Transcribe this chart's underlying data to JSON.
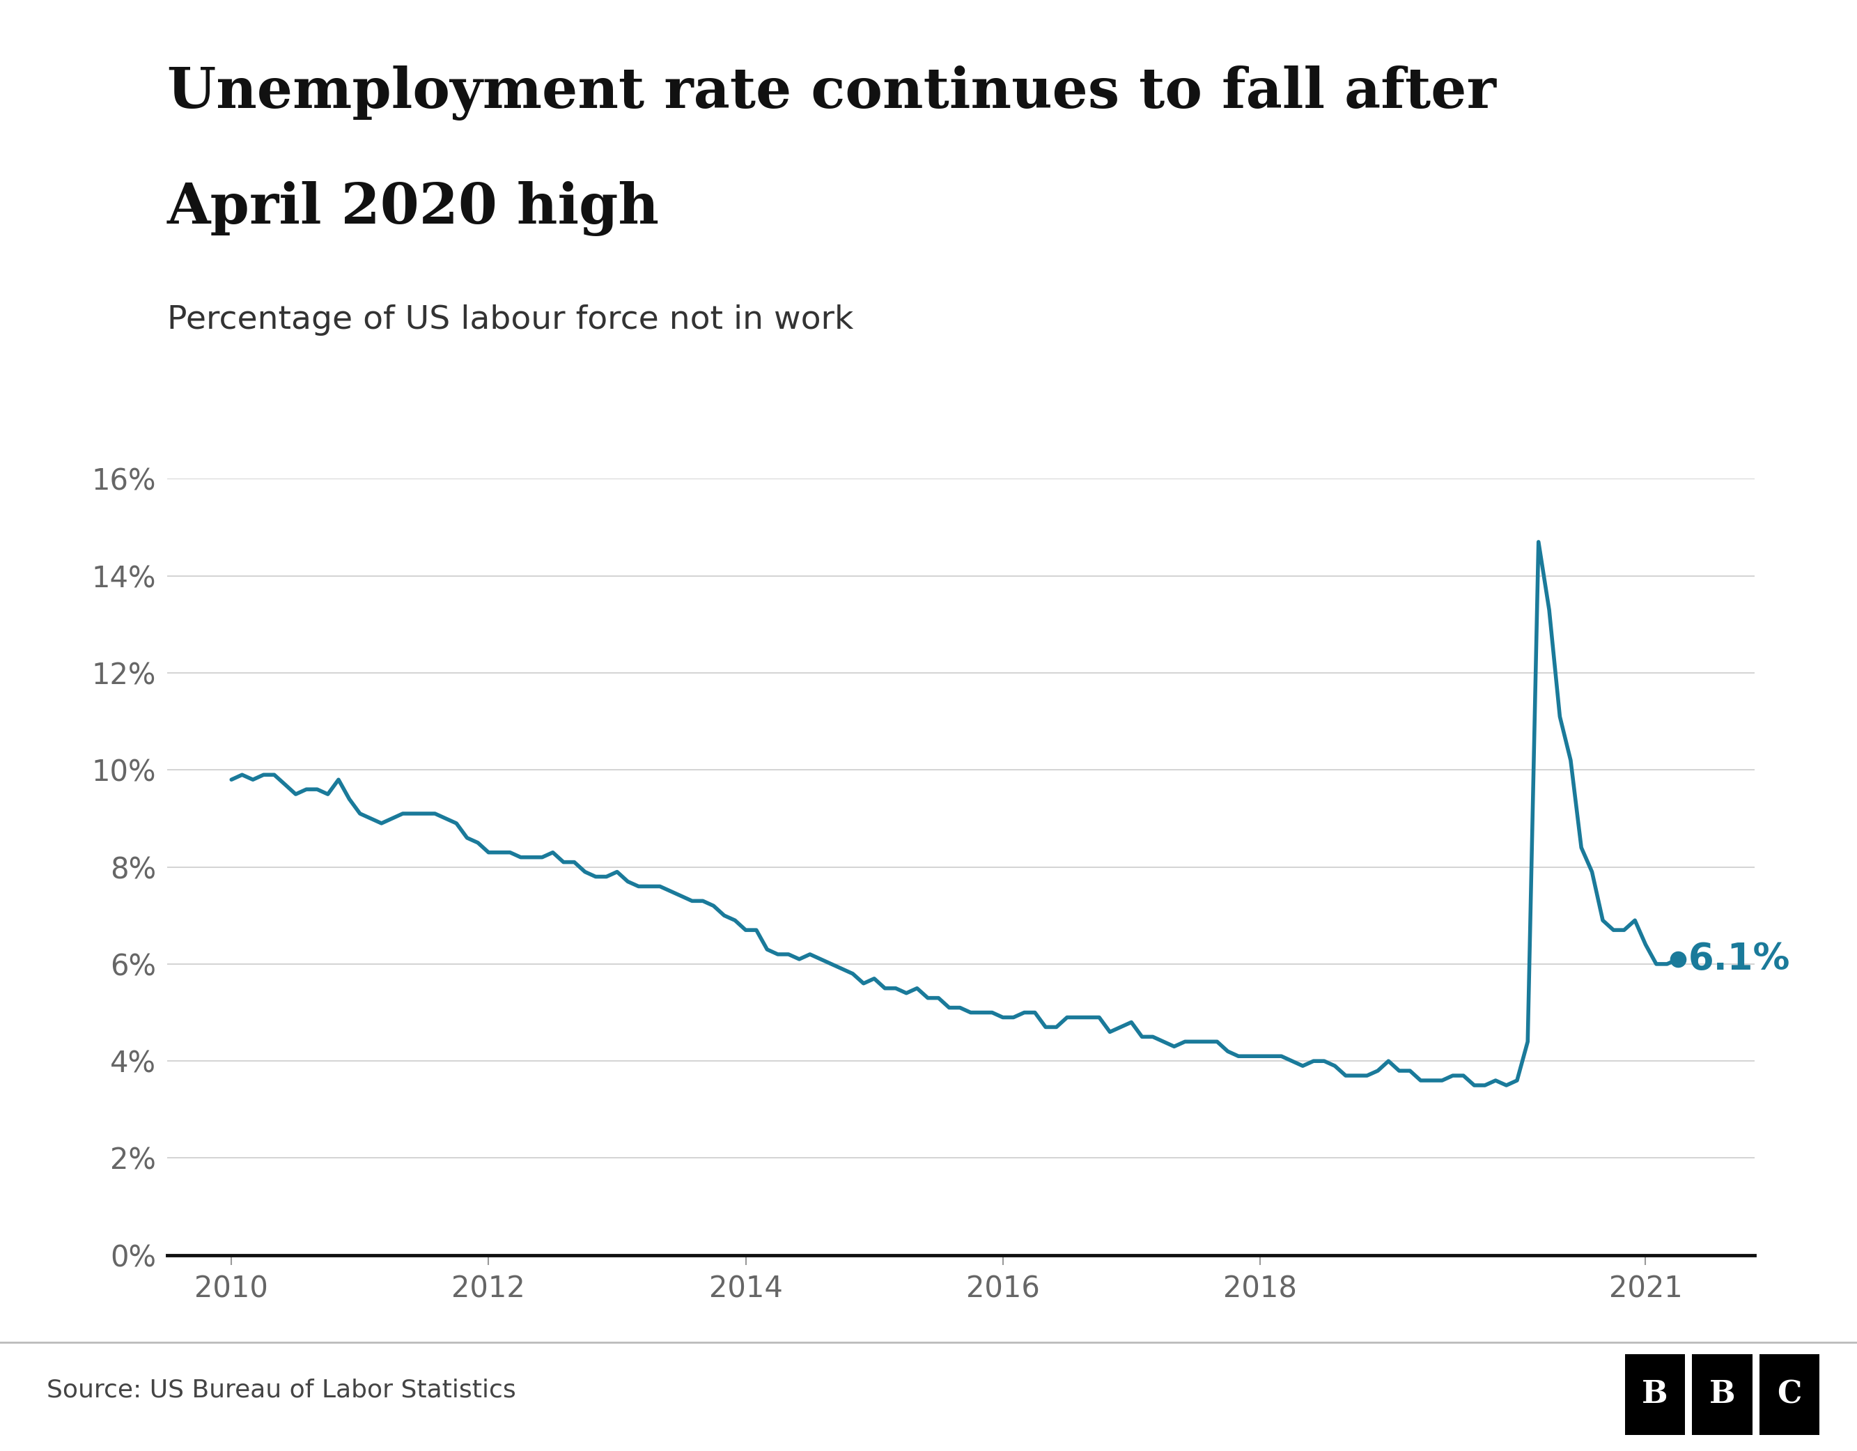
{
  "title_line1": "Unemployment rate continues to fall after",
  "title_line2": "April 2020 high",
  "subtitle": "Percentage of US labour force not in work",
  "source": "Source: US Bureau of Labor Statistics",
  "line_color": "#1a7a9a",
  "background_color": "#ffffff",
  "annotation_value": "6.1%",
  "annotation_color": "#1a7a9a",
  "ylim": [
    0,
    16
  ],
  "yticks": [
    0,
    2,
    4,
    6,
    8,
    10,
    12,
    14,
    16
  ],
  "xticks": [
    2010,
    2012,
    2014,
    2016,
    2018,
    2021
  ],
  "data": {
    "dates": [
      2010.0,
      2010.083,
      2010.167,
      2010.25,
      2010.333,
      2010.417,
      2010.5,
      2010.583,
      2010.667,
      2010.75,
      2010.833,
      2010.917,
      2011.0,
      2011.083,
      2011.167,
      2011.25,
      2011.333,
      2011.417,
      2011.5,
      2011.583,
      2011.667,
      2011.75,
      2011.833,
      2011.917,
      2012.0,
      2012.083,
      2012.167,
      2012.25,
      2012.333,
      2012.417,
      2012.5,
      2012.583,
      2012.667,
      2012.75,
      2012.833,
      2012.917,
      2013.0,
      2013.083,
      2013.167,
      2013.25,
      2013.333,
      2013.417,
      2013.5,
      2013.583,
      2013.667,
      2013.75,
      2013.833,
      2013.917,
      2014.0,
      2014.083,
      2014.167,
      2014.25,
      2014.333,
      2014.417,
      2014.5,
      2014.583,
      2014.667,
      2014.75,
      2014.833,
      2014.917,
      2015.0,
      2015.083,
      2015.167,
      2015.25,
      2015.333,
      2015.417,
      2015.5,
      2015.583,
      2015.667,
      2015.75,
      2015.833,
      2015.917,
      2016.0,
      2016.083,
      2016.167,
      2016.25,
      2016.333,
      2016.417,
      2016.5,
      2016.583,
      2016.667,
      2016.75,
      2016.833,
      2016.917,
      2017.0,
      2017.083,
      2017.167,
      2017.25,
      2017.333,
      2017.417,
      2017.5,
      2017.583,
      2017.667,
      2017.75,
      2017.833,
      2017.917,
      2018.0,
      2018.083,
      2018.167,
      2018.25,
      2018.333,
      2018.417,
      2018.5,
      2018.583,
      2018.667,
      2018.75,
      2018.833,
      2018.917,
      2019.0,
      2019.083,
      2019.167,
      2019.25,
      2019.333,
      2019.417,
      2019.5,
      2019.583,
      2019.667,
      2019.75,
      2019.833,
      2019.917,
      2020.0,
      2020.083,
      2020.167,
      2020.25,
      2020.333,
      2020.417,
      2020.5,
      2020.583,
      2020.667,
      2020.75,
      2020.833,
      2020.917,
      2021.0,
      2021.083,
      2021.167,
      2021.25
    ],
    "values": [
      9.8,
      9.9,
      9.8,
      9.9,
      9.9,
      9.7,
      9.5,
      9.6,
      9.6,
      9.5,
      9.8,
      9.4,
      9.1,
      9.0,
      8.9,
      9.0,
      9.1,
      9.1,
      9.1,
      9.1,
      9.0,
      8.9,
      8.6,
      8.5,
      8.3,
      8.3,
      8.3,
      8.2,
      8.2,
      8.2,
      8.3,
      8.1,
      8.1,
      7.9,
      7.8,
      7.8,
      7.9,
      7.7,
      7.6,
      7.6,
      7.6,
      7.5,
      7.4,
      7.3,
      7.3,
      7.2,
      7.0,
      6.9,
      6.7,
      6.7,
      6.3,
      6.2,
      6.2,
      6.1,
      6.2,
      6.1,
      6.0,
      5.9,
      5.8,
      5.6,
      5.7,
      5.5,
      5.5,
      5.4,
      5.5,
      5.3,
      5.3,
      5.1,
      5.1,
      5.0,
      5.0,
      5.0,
      4.9,
      4.9,
      5.0,
      5.0,
      4.7,
      4.7,
      4.9,
      4.9,
      4.9,
      4.9,
      4.6,
      4.7,
      4.8,
      4.5,
      4.5,
      4.4,
      4.3,
      4.4,
      4.4,
      4.4,
      4.4,
      4.2,
      4.1,
      4.1,
      4.1,
      4.1,
      4.1,
      4.0,
      3.9,
      4.0,
      4.0,
      3.9,
      3.7,
      3.7,
      3.7,
      3.8,
      4.0,
      3.8,
      3.8,
      3.6,
      3.6,
      3.6,
      3.7,
      3.7,
      3.5,
      3.5,
      3.6,
      3.5,
      3.6,
      4.4,
      14.7,
      13.3,
      11.1,
      10.2,
      8.4,
      7.9,
      6.9,
      6.7,
      6.7,
      6.9,
      6.4,
      6.0,
      6.0,
      6.1
    ]
  },
  "last_point_date": 2021.25,
  "last_point_value": 6.1
}
